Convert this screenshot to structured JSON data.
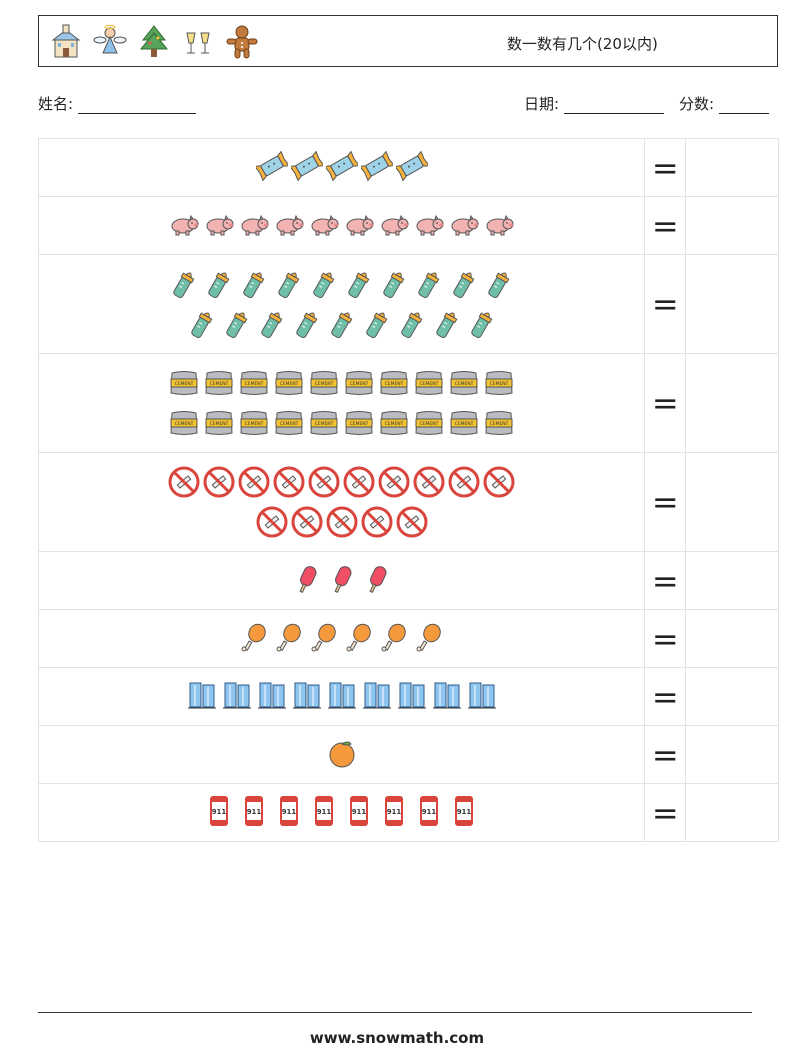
{
  "header": {
    "title": "数一数有几个(20以内)",
    "icons": [
      "church-icon",
      "angel-icon",
      "christmas-tree-icon",
      "champagne-icon",
      "gingerbread-icon"
    ]
  },
  "info": {
    "name_label": "姓名:",
    "date_label": "日期:",
    "score_label": "分数:"
  },
  "rows": [
    {
      "icon": "candy-icon",
      "count": 5,
      "eq": "="
    },
    {
      "icon": "pig-icon",
      "count": 10,
      "eq": "="
    },
    {
      "icon": "baby-bottle-icon",
      "count": 19,
      "eq": "="
    },
    {
      "icon": "cement-bag-icon",
      "count": 20,
      "eq": "="
    },
    {
      "icon": "no-smoking-icon",
      "count": 15,
      "eq": "="
    },
    {
      "icon": "popsicle-icon",
      "count": 3,
      "eq": "="
    },
    {
      "icon": "chicken-leg-icon",
      "count": 6,
      "eq": "="
    },
    {
      "icon": "building-icon",
      "count": 9,
      "eq": "="
    },
    {
      "icon": "orange-icon",
      "count": 1,
      "eq": "="
    },
    {
      "icon": "phone-911-icon",
      "count": 8,
      "eq": "="
    }
  ],
  "footer": {
    "url": "www.snowmath.com"
  }
}
